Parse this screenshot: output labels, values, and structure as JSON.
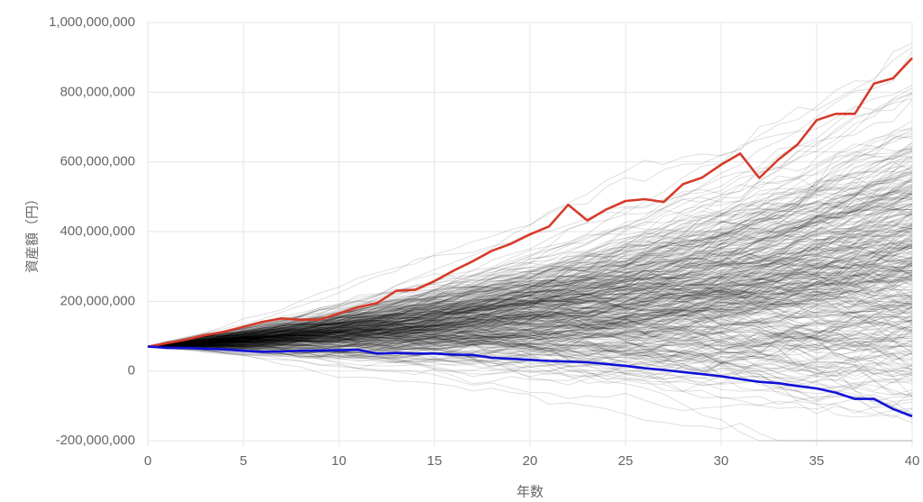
{
  "chart_data": {
    "type": "line",
    "title": "",
    "xlabel": "年数",
    "ylabel": "資産額（円）",
    "xlim": [
      0,
      40
    ],
    "ylim": [
      -200000000,
      1000000000
    ],
    "x_ticks": [
      0,
      5,
      10,
      15,
      20,
      25,
      30,
      35,
      40
    ],
    "x_tick_labels": [
      "0",
      "5",
      "10",
      "15",
      "20",
      "25",
      "30",
      "35",
      "40"
    ],
    "y_ticks": [
      -200000000,
      0,
      200000000,
      400000000,
      600000000,
      800000000,
      1000000000
    ],
    "y_tick_labels": [
      "-200,000,000",
      "0",
      "200,000,000",
      "400,000,000",
      "600,000,000",
      "800,000,000",
      "1,000,000,000"
    ],
    "grid": true,
    "legend": "none",
    "x": [
      0,
      1,
      2,
      3,
      4,
      5,
      6,
      7,
      8,
      9,
      10,
      11,
      12,
      13,
      14,
      15,
      16,
      17,
      18,
      19,
      20,
      21,
      22,
      23,
      24,
      25,
      26,
      27,
      28,
      29,
      30,
      31,
      32,
      33,
      34,
      35,
      36,
      37,
      38,
      39,
      40
    ],
    "series": [
      {
        "color": "#d63a2a",
        "values": [
          70000000,
          80000000,
          90000000,
          103000000,
          113000000,
          127000000,
          141000000,
          151000000,
          147000000,
          148000000,
          165000000,
          183000000,
          195000000,
          230000000,
          233000000,
          258000000,
          288000000,
          315000000,
          345000000,
          365000000,
          392000000,
          415000000,
          477000000,
          432000000,
          464000000,
          488000000,
          493000000,
          485000000,
          536000000,
          555000000,
          592000000,
          624000000,
          554000000,
          607000000,
          650000000,
          720000000,
          738000000,
          738000000,
          825000000,
          840000000,
          898000000
        ]
      },
      {
        "color": "#1010d8",
        "values": [
          70000000,
          67000000,
          66000000,
          64000000,
          62000000,
          58000000,
          55000000,
          56000000,
          58000000,
          59000000,
          60000000,
          61000000,
          50000000,
          52000000,
          50000000,
          50000000,
          47000000,
          46000000,
          38000000,
          35000000,
          32000000,
          29000000,
          27000000,
          25000000,
          20000000,
          15000000,
          8000000,
          3000000,
          -3000000,
          -9000000,
          -15000000,
          -23000000,
          -31000000,
          -35000000,
          -43000000,
          -50000000,
          -62000000,
          -80000000,
          -80000000,
          -109000000,
          -130000000
        ]
      }
    ],
    "simulation_paths": {
      "count": 400,
      "color": "#000000",
      "start_value": 70000000
    }
  }
}
